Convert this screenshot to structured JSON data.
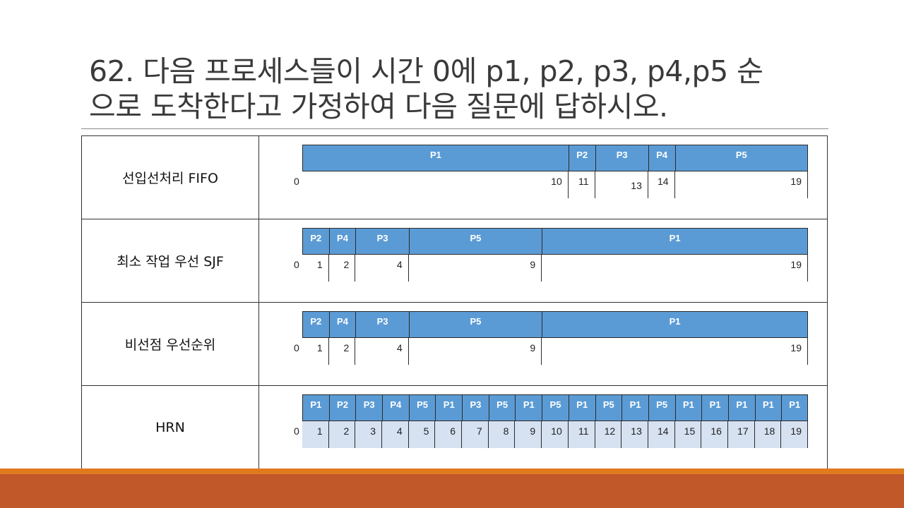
{
  "title_line1": "62. 다음 프로세스들이 시간 0에 p1, p2, p3, p4,p5 순",
  "title_line2": "으로 도착한다고 가정하여 다음 질문에 답하시오.",
  "colors": {
    "segment_fill": "#5b9bd5",
    "tick_shade": "#d6e1f1",
    "footer_orange": "#e07a1f",
    "footer_brown": "#c0582a"
  },
  "rows": [
    {
      "label": "선입선처리 FIFO",
      "segments": [
        {
          "name": "P1",
          "start": 0,
          "end": 10
        },
        {
          "name": "P2",
          "start": 10,
          "end": 11
        },
        {
          "name": "P3",
          "start": 11,
          "end": 13
        },
        {
          "name": "P4",
          "start": 13,
          "end": 14
        },
        {
          "name": "P5",
          "start": 14,
          "end": 19
        }
      ],
      "start_label": "0",
      "ticks": [
        "10",
        "11",
        "13",
        "14",
        "19"
      ]
    },
    {
      "label": "최소 작업 우선 SJF",
      "segments": [
        {
          "name": "P2",
          "start": 0,
          "end": 1
        },
        {
          "name": "P4",
          "start": 1,
          "end": 2
        },
        {
          "name": "P3",
          "start": 2,
          "end": 4
        },
        {
          "name": "P5",
          "start": 4,
          "end": 9
        },
        {
          "name": "P1",
          "start": 9,
          "end": 19
        }
      ],
      "start_label": "0",
      "ticks": [
        "1",
        "2",
        "4",
        "9",
        "19"
      ]
    },
    {
      "label": "비선점 우선순위",
      "segments": [
        {
          "name": "P2",
          "start": 0,
          "end": 1
        },
        {
          "name": "P4",
          "start": 1,
          "end": 2
        },
        {
          "name": "P3",
          "start": 2,
          "end": 4
        },
        {
          "name": "P5",
          "start": 4,
          "end": 9
        },
        {
          "name": "P1",
          "start": 9,
          "end": 19
        }
      ],
      "start_label": "0",
      "ticks": [
        "1",
        "2",
        "4",
        "9",
        "19"
      ]
    },
    {
      "label": "HRN",
      "segments": [
        {
          "name": "P1",
          "start": 0,
          "end": 1
        },
        {
          "name": "P2",
          "start": 1,
          "end": 2
        },
        {
          "name": "P3",
          "start": 2,
          "end": 3
        },
        {
          "name": "P4",
          "start": 3,
          "end": 4
        },
        {
          "name": "P5",
          "start": 4,
          "end": 5
        },
        {
          "name": "P1",
          "start": 5,
          "end": 6
        },
        {
          "name": "P3",
          "start": 6,
          "end": 7
        },
        {
          "name": "P5",
          "start": 7,
          "end": 8
        },
        {
          "name": "P1",
          "start": 8,
          "end": 9
        },
        {
          "name": "P5",
          "start": 9,
          "end": 10
        },
        {
          "name": "P1",
          "start": 10,
          "end": 11
        },
        {
          "name": "P5",
          "start": 11,
          "end": 12
        },
        {
          "name": "P1",
          "start": 12,
          "end": 13
        },
        {
          "name": "P5",
          "start": 13,
          "end": 14
        },
        {
          "name": "P1",
          "start": 14,
          "end": 15
        },
        {
          "name": "P1",
          "start": 15,
          "end": 16
        },
        {
          "name": "P1",
          "start": 16,
          "end": 17
        },
        {
          "name": "P1",
          "start": 17,
          "end": 18
        },
        {
          "name": "P1",
          "start": 18,
          "end": 19
        }
      ],
      "start_label": "0",
      "ticks": [
        "1",
        "2",
        "3",
        "4",
        "5",
        "6",
        "7",
        "8",
        "9",
        "10",
        "11",
        "12",
        "13",
        "14",
        "15",
        "16",
        "17",
        "18",
        "19"
      ]
    }
  ]
}
